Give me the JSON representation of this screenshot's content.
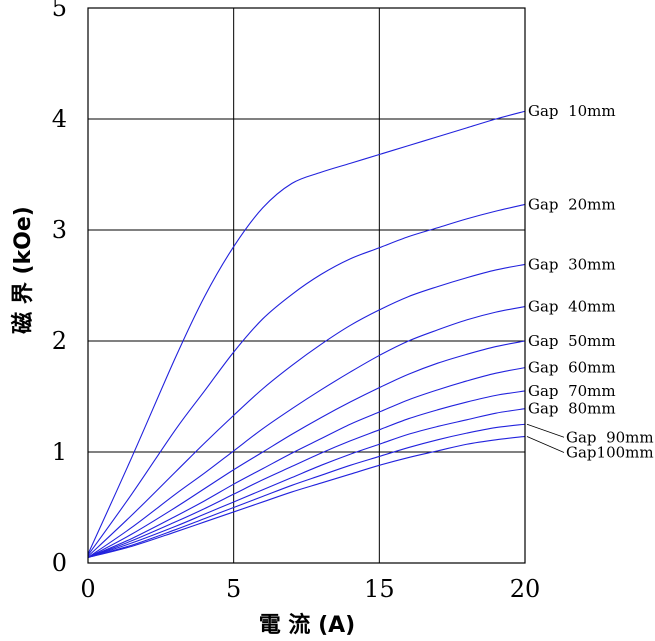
{
  "chart_data": {
    "type": "line",
    "title": "",
    "xlabel": "電 流 (A)",
    "ylabel": "磁 界 (kOe)",
    "xlim": [
      0,
      30
    ],
    "ylim": [
      0,
      5
    ],
    "grid": true,
    "x_ticks": [
      {
        "value": 0,
        "label": "0"
      },
      {
        "value": 10,
        "label": "5"
      },
      {
        "value": 20,
        "label": "15"
      },
      {
        "value": 30,
        "label": "20"
      }
    ],
    "y_ticks": [
      {
        "value": 0,
        "label": "0"
      },
      {
        "value": 1,
        "label": "1"
      },
      {
        "value": 2,
        "label": "2"
      },
      {
        "value": 3,
        "label": "3"
      },
      {
        "value": 4,
        "label": "4"
      },
      {
        "value": 5,
        "label": "5"
      }
    ],
    "line_color": "#2222dd",
    "x": [
      0,
      3,
      6,
      8,
      10,
      12,
      14,
      16,
      18,
      20,
      22,
      24,
      26,
      28,
      30
    ],
    "series": [
      {
        "name": "Gap  10mm",
        "values": [
          0.08,
          0.95,
          1.85,
          2.4,
          2.85,
          3.2,
          3.42,
          3.52,
          3.6,
          3.68,
          3.76,
          3.84,
          3.92,
          4.0,
          4.07
        ]
      },
      {
        "name": "Gap  20mm",
        "values": [
          0.07,
          0.62,
          1.2,
          1.55,
          1.9,
          2.2,
          2.42,
          2.6,
          2.74,
          2.84,
          2.94,
          3.02,
          3.1,
          3.17,
          3.23
        ]
      },
      {
        "name": "Gap  30mm",
        "values": [
          0.06,
          0.43,
          0.82,
          1.08,
          1.33,
          1.57,
          1.78,
          1.97,
          2.14,
          2.28,
          2.4,
          2.49,
          2.57,
          2.64,
          2.69
        ]
      },
      {
        "name": "Gap  40mm",
        "values": [
          0.05,
          0.32,
          0.62,
          0.81,
          1.01,
          1.21,
          1.39,
          1.56,
          1.72,
          1.87,
          2.0,
          2.1,
          2.19,
          2.26,
          2.31
        ]
      },
      {
        "name": "Gap  50mm",
        "values": [
          0.05,
          0.26,
          0.5,
          0.67,
          0.84,
          1.0,
          1.16,
          1.31,
          1.45,
          1.58,
          1.7,
          1.8,
          1.88,
          1.95,
          2.0
        ]
      },
      {
        "name": "Gap  60mm",
        "values": [
          0.05,
          0.22,
          0.42,
          0.56,
          0.71,
          0.85,
          0.99,
          1.12,
          1.25,
          1.36,
          1.47,
          1.56,
          1.64,
          1.71,
          1.76
        ]
      },
      {
        "name": "Gap  70mm",
        "values": [
          0.05,
          0.2,
          0.37,
          0.49,
          0.62,
          0.75,
          0.87,
          0.99,
          1.1,
          1.2,
          1.3,
          1.38,
          1.45,
          1.51,
          1.55
        ]
      },
      {
        "name": "Gap  80mm",
        "values": [
          0.05,
          0.18,
          0.33,
          0.44,
          0.55,
          0.66,
          0.77,
          0.88,
          0.98,
          1.07,
          1.16,
          1.23,
          1.29,
          1.35,
          1.39
        ]
      },
      {
        "name": "Gap  90mm",
        "values": [
          0.05,
          0.16,
          0.3,
          0.4,
          0.5,
          0.6,
          0.7,
          0.79,
          0.88,
          0.96,
          1.04,
          1.11,
          1.17,
          1.22,
          1.25
        ]
      },
      {
        "name": "Gap100mm",
        "values": [
          0.05,
          0.15,
          0.28,
          0.37,
          0.46,
          0.55,
          0.64,
          0.72,
          0.8,
          0.88,
          0.95,
          1.01,
          1.07,
          1.11,
          1.14
        ]
      }
    ]
  }
}
